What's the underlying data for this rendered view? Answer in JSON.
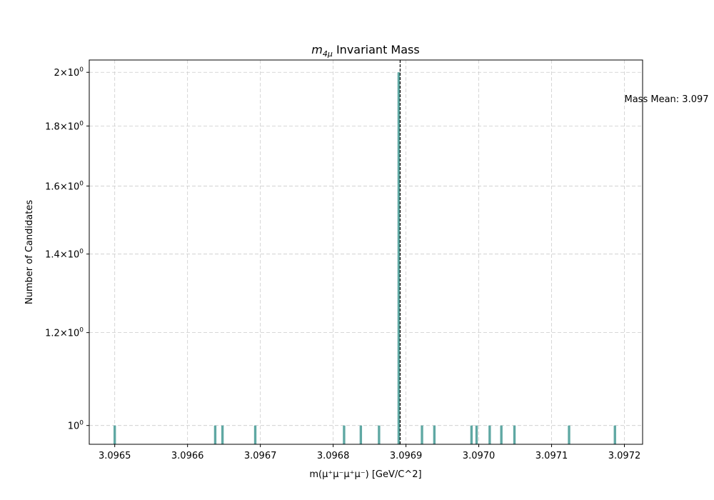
{
  "chart_data": {
    "type": "bar",
    "title_prefix": "m",
    "title_subscript": "4μ",
    "title_suffix": " Invariant Mass",
    "xlabel": "m(μ⁺μ⁻μ⁺μ⁻) [GeV/C^2]",
    "ylabel": "Number of Candidates",
    "y_scale": "log",
    "xlim": [
      3.096465,
      3.097225
    ],
    "ylim": [
      0.9638,
      2.0489
    ],
    "x_ticks": [
      {
        "value": 3.0965,
        "label": "3.0965"
      },
      {
        "value": 3.0966,
        "label": "3.0966"
      },
      {
        "value": 3.0967,
        "label": "3.0967"
      },
      {
        "value": 3.0968,
        "label": "3.0968"
      },
      {
        "value": 3.0969,
        "label": "3.0969"
      },
      {
        "value": 3.097,
        "label": "3.0970"
      },
      {
        "value": 3.0971,
        "label": "3.0971"
      },
      {
        "value": 3.0972,
        "label": "3.0972"
      }
    ],
    "y_ticks": [
      {
        "value": 1.0,
        "mantissa": "",
        "exponent": "0"
      },
      {
        "value": 1.2,
        "mantissa": "1.2",
        "exponent": "0"
      },
      {
        "value": 1.4,
        "mantissa": "1.4",
        "exponent": "0"
      },
      {
        "value": 1.6,
        "mantissa": "1.6",
        "exponent": "0"
      },
      {
        "value": 1.8,
        "mantissa": "1.8",
        "exponent": "0"
      },
      {
        "value": 2.0,
        "mantissa": "2",
        "exponent": "0"
      }
    ],
    "bar_color": "#5fa8a3",
    "bar_width": 3.3e-06,
    "bins": [
      {
        "x": 3.0965,
        "count": 1
      },
      {
        "x": 3.096638,
        "count": 1
      },
      {
        "x": 3.096648,
        "count": 1
      },
      {
        "x": 3.096693,
        "count": 1
      },
      {
        "x": 3.096815,
        "count": 1
      },
      {
        "x": 3.096838,
        "count": 1
      },
      {
        "x": 3.096863,
        "count": 1
      },
      {
        "x": 3.09689,
        "count": 2
      },
      {
        "x": 3.096922,
        "count": 1
      },
      {
        "x": 3.096939,
        "count": 1
      },
      {
        "x": 3.09699,
        "count": 1
      },
      {
        "x": 3.096997,
        "count": 1
      },
      {
        "x": 3.097015,
        "count": 1
      },
      {
        "x": 3.097031,
        "count": 1
      },
      {
        "x": 3.097049,
        "count": 1
      },
      {
        "x": 3.097124,
        "count": 1
      },
      {
        "x": 3.097187,
        "count": 1
      }
    ],
    "mean_line": {
      "x": 3.096892,
      "color": "#000000",
      "style": "dashed"
    },
    "annotation": {
      "text": "Mass Mean: 3.097",
      "x": 3.0972,
      "y": 1.9
    },
    "grid": {
      "x": true,
      "y": true,
      "style": "dashed",
      "color": "#cccccc"
    }
  }
}
